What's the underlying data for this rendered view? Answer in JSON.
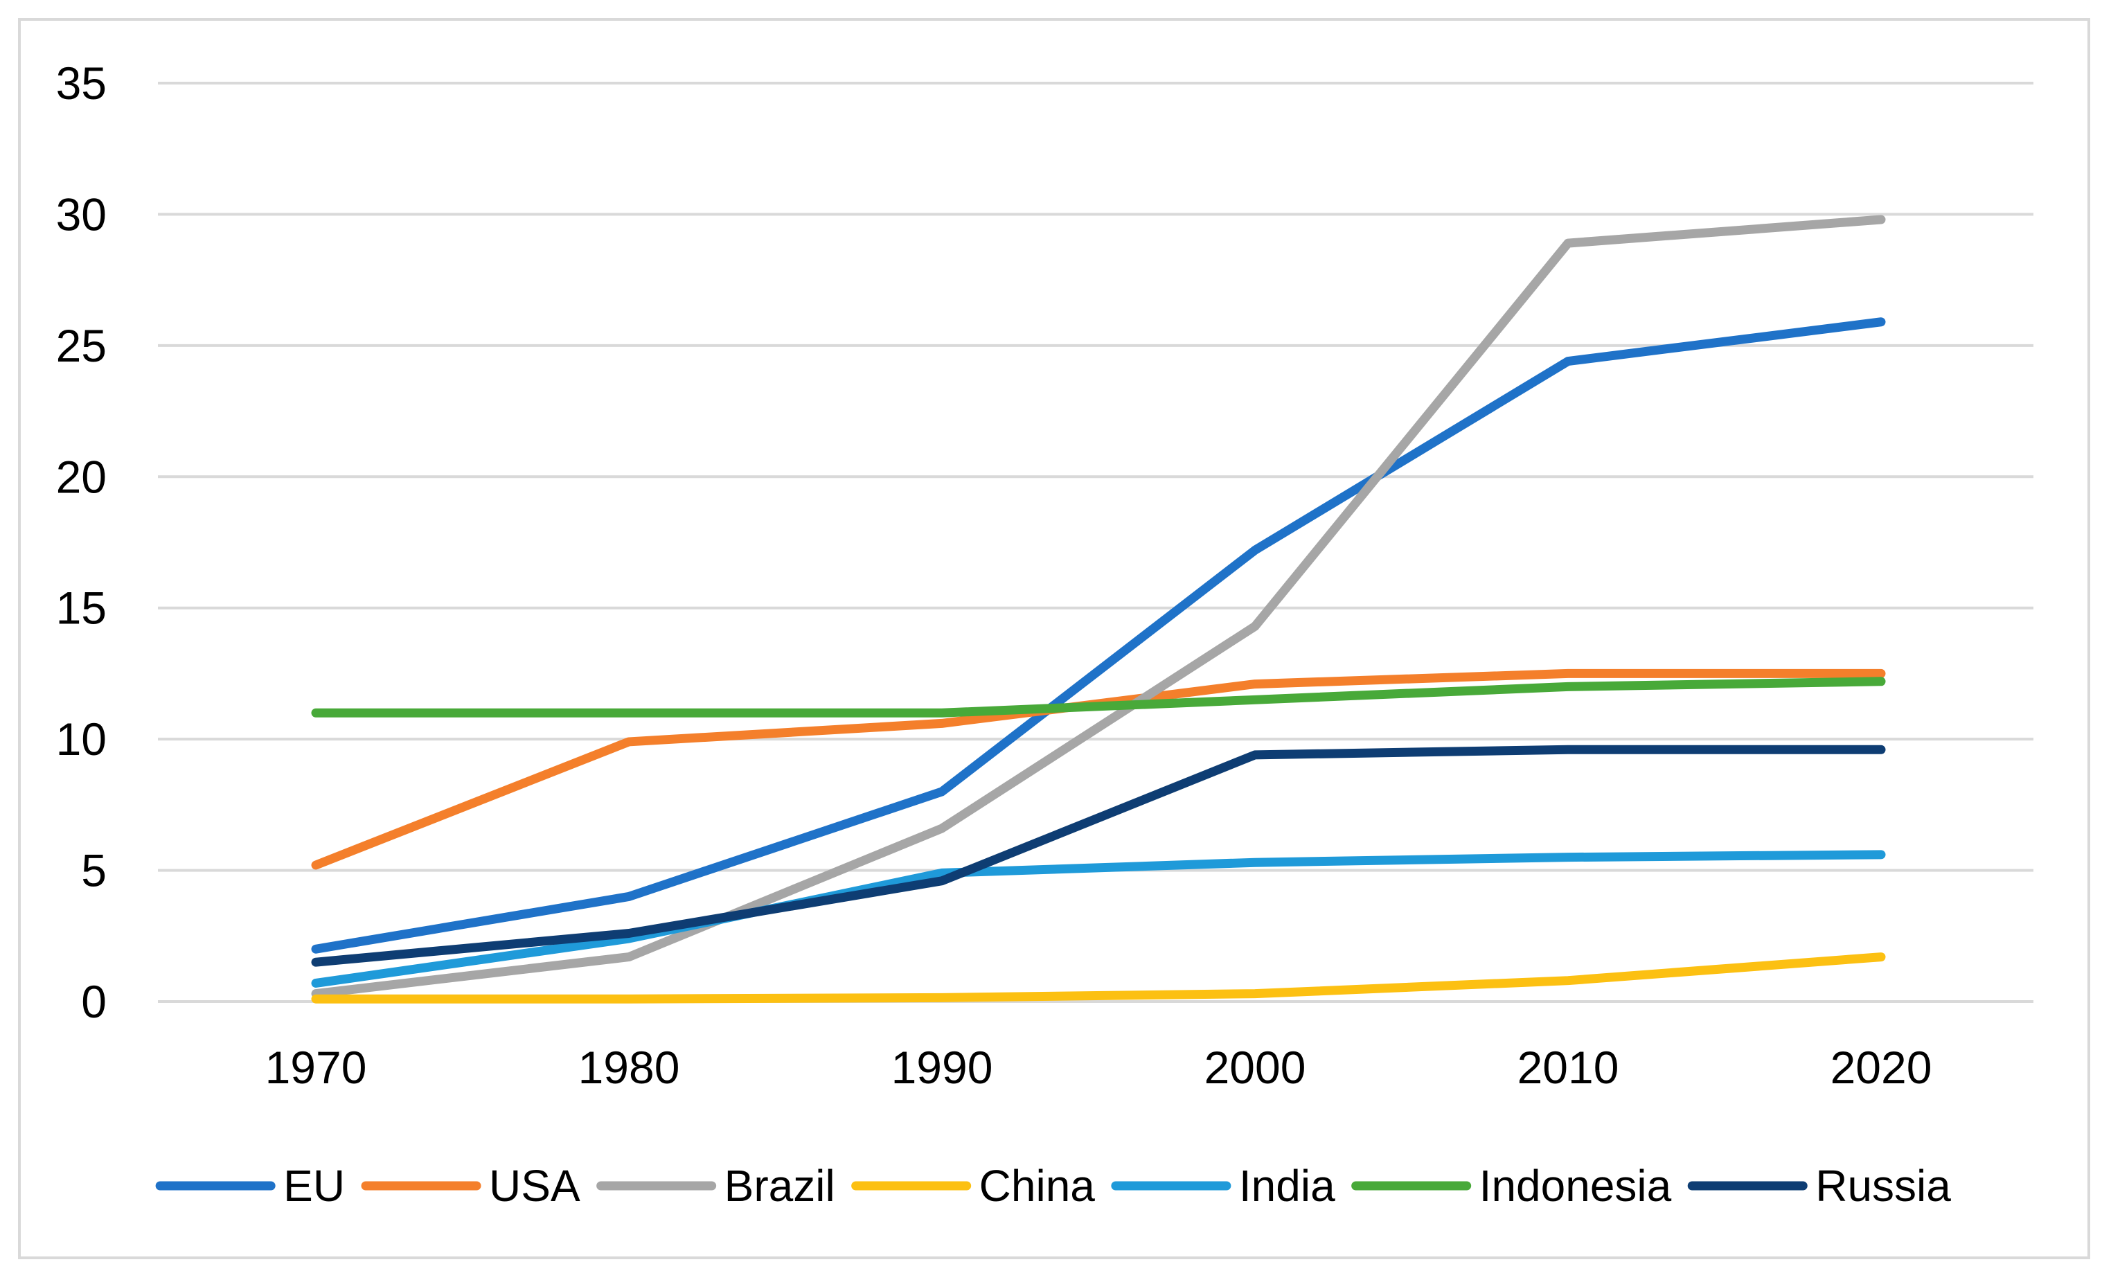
{
  "chart_data": {
    "type": "line",
    "title": "",
    "xlabel": "",
    "ylabel": "",
    "x": [
      "1970",
      "1980",
      "1990",
      "2000",
      "2010",
      "2020"
    ],
    "ylim": [
      0,
      35
    ],
    "yticks": [
      0,
      5,
      10,
      15,
      20,
      25,
      30,
      35
    ],
    "grid": "horizontal",
    "legend": "bottom",
    "series": [
      {
        "name": "EU",
        "color": "#1f72c8",
        "values": [
          2.0,
          4.0,
          8.0,
          17.2,
          24.4,
          25.9
        ]
      },
      {
        "name": "USA",
        "color": "#f47f2b",
        "values": [
          5.2,
          9.9,
          10.6,
          12.1,
          12.5,
          12.5
        ]
      },
      {
        "name": "Brazil",
        "color": "#a6a6a6",
        "values": [
          0.3,
          1.7,
          6.6,
          14.3,
          28.9,
          29.8
        ]
      },
      {
        "name": "China",
        "color": "#fcc012",
        "values": [
          0.1,
          0.1,
          0.15,
          0.3,
          0.8,
          1.7
        ]
      },
      {
        "name": "India",
        "color": "#1f9ad9",
        "values": [
          0.7,
          2.4,
          4.9,
          5.3,
          5.5,
          5.6
        ]
      },
      {
        "name": "Indonesia",
        "color": "#48a939",
        "values": [
          11.0,
          11.0,
          11.0,
          11.5,
          12.0,
          12.2
        ]
      },
      {
        "name": "Russia",
        "color": "#0e3d73",
        "values": [
          1.5,
          2.6,
          4.6,
          9.4,
          9.6,
          9.6
        ]
      }
    ]
  }
}
